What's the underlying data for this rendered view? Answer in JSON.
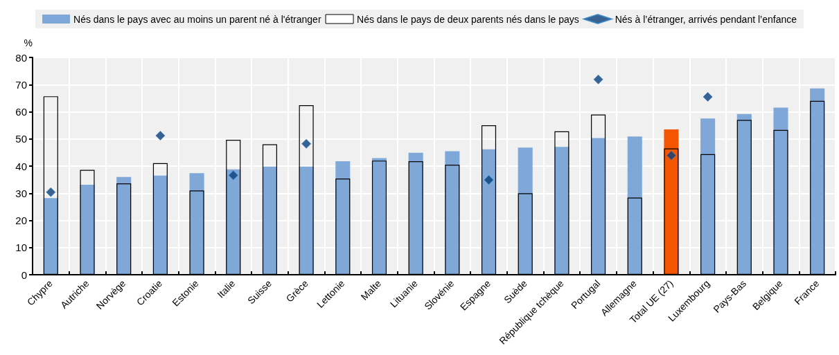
{
  "chart_data": {
    "type": "bar",
    "ylabel": "%",
    "categories": [
      "Chypre",
      "Autriche",
      "Norvège",
      "Croatie",
      "Estonie",
      "Italie",
      "Suisse",
      "Grèce",
      "Lettonie",
      "Malte",
      "Lituanie",
      "Slovénie",
      "Espagne",
      "Suède",
      "République tchèque",
      "Portugal",
      "Allemagne",
      "Total UE (27)",
      "Luxembourg",
      "Pays-Bas",
      "Belgique",
      "France"
    ],
    "series": [
      {
        "name": "Nés dans le pays avec au moins un parent né à l'étranger",
        "type": "bar",
        "color": "#7fa8d9",
        "colors": [
          "#7fa8d9",
          "#7fa8d9",
          "#7fa8d9",
          "#7fa8d9",
          "#7fa8d9",
          "#7fa8d9",
          "#7fa8d9",
          "#7fa8d9",
          "#7fa8d9",
          "#7fa8d9",
          "#7fa8d9",
          "#7fa8d9",
          "#7fa8d9",
          "#7fa8d9",
          "#7fa8d9",
          "#7fa8d9",
          "#7fa8d9",
          "#f45500",
          "#7fa8d9",
          "#7fa8d9",
          "#7fa8d9",
          "#7fa8d9"
        ],
        "values": [
          28.2,
          33.1,
          36.0,
          36.5,
          37.4,
          38.8,
          39.8,
          39.8,
          41.8,
          42.9,
          44.9,
          45.5,
          46.2,
          46.8,
          47.1,
          50.3,
          50.9,
          53.5,
          57.5,
          59.2,
          61.5,
          68.6
        ]
      },
      {
        "name": "Nés dans le pays de deux parents nés dans le pays",
        "type": "bar",
        "values": [
          65.7,
          38.6,
          33.6,
          41.1,
          31.0,
          49.7,
          48.0,
          62.4,
          35.4,
          42.0,
          41.8,
          40.5,
          55.0,
          30.0,
          52.8,
          59.0,
          28.4,
          46.5,
          44.4,
          57.0,
          53.3,
          64.0
        ]
      },
      {
        "name": "Nés à l’étranger, arrivés pendant l’enfance",
        "type": "scatter",
        "marker": "diamond",
        "color": "#0b3d7a",
        "values": [
          30.4,
          null,
          null,
          51.2,
          null,
          36.6,
          null,
          48.2,
          null,
          null,
          null,
          null,
          34.9,
          null,
          null,
          71.9,
          null,
          43.9,
          65.5,
          null,
          null,
          null
        ]
      }
    ],
    "ylim": [
      0,
      80
    ],
    "yticks": [
      0,
      10,
      20,
      30,
      40,
      50,
      60,
      70,
      80
    ],
    "grid": true,
    "legend": "top"
  }
}
